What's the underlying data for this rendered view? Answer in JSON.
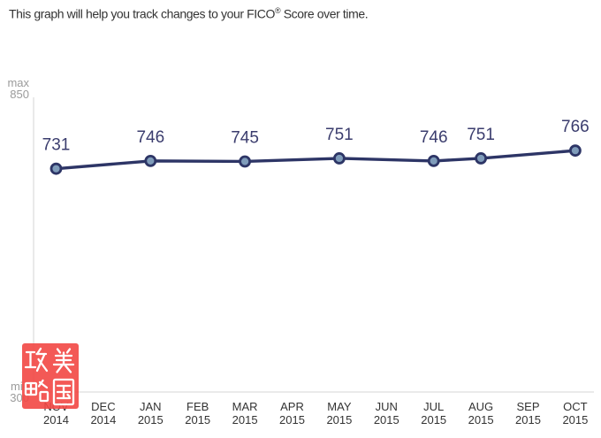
{
  "title": {
    "text_before_reg": "This graph will help you track changes to your FICO",
    "reg_mark": "®",
    "text_after_reg": " Score over time."
  },
  "chart_data": {
    "type": "line",
    "title": "This graph will help you track changes to your FICO® Score over time.",
    "x_categories": [
      "NOV 2014",
      "DEC 2014",
      "JAN 2015",
      "FEB 2015",
      "MAR 2015",
      "APR 2015",
      "MAY 2015",
      "JUN 2015",
      "JUL 2015",
      "AUG 2015",
      "SEP 2015",
      "OCT 2015"
    ],
    "series": [
      {
        "name": "FICO Score",
        "points": [
          {
            "x": "NOV 2014",
            "y": 731
          },
          {
            "x": "JAN 2015",
            "y": 746
          },
          {
            "x": "MAR 2015",
            "y": 745
          },
          {
            "x": "MAY 2015",
            "y": 751
          },
          {
            "x": "JUL 2015",
            "y": 746
          },
          {
            "x": "AUG 2015",
            "y": 751
          },
          {
            "x": "OCT 2015",
            "y": 766
          }
        ]
      }
    ],
    "y_axis": {
      "min": 300,
      "max": 850,
      "max_label_lines": [
        "max",
        "850"
      ],
      "min_label_lines": [
        "min",
        "300"
      ]
    },
    "grid": false,
    "legend": false,
    "point_labels_shown": true
  },
  "colors": {
    "line": "#2d3566",
    "marker_fill": "#7f9cba",
    "marker_stroke": "#2d3566",
    "value_label": "#3b3d6e",
    "axis_line": "#d4d4d4",
    "axis_minmax_text": "#9b9b9b",
    "tick_text": "#333333",
    "title_text": "#333333",
    "watermark_red": "#f24744",
    "background": "#ffffff"
  },
  "watermark": {
    "text": "美国攻略",
    "chars_grid": [
      "攻",
      "美",
      "略",
      "国"
    ]
  }
}
